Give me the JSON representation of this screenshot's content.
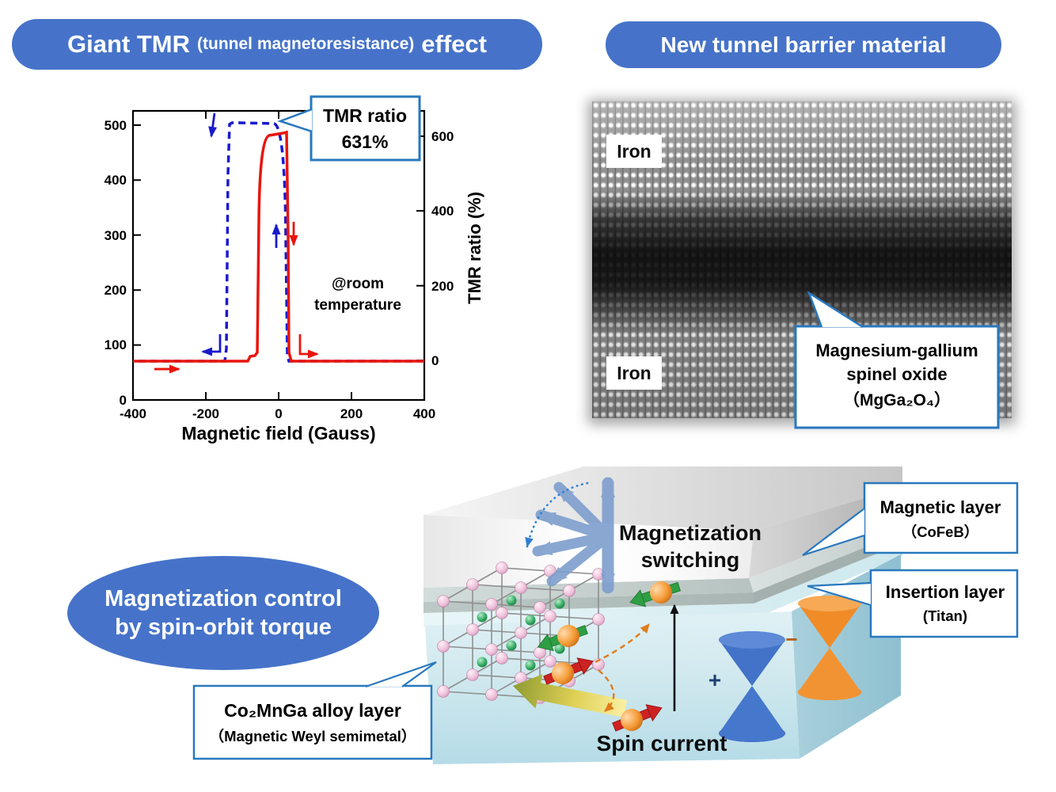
{
  "banner_tmr": {
    "main": "Giant TMR",
    "paren": "(tunnel magnetoresistance)",
    "suffix": "effect"
  },
  "banner_barrier": {
    "label": "New tunnel barrier material"
  },
  "bubble_soc": {
    "line1": "Magnetization control",
    "line2": "by spin-orbit torque"
  },
  "chart": {
    "xlabel": "Magnetic field (Gauss)",
    "right_axis_label": "TMR ratio (%)",
    "note_line1": "@room",
    "note_line2": "temperature",
    "callout_line1": "TMR ratio",
    "callout_line2": "631%",
    "left_ticks": [
      "500",
      "400",
      "300",
      "200",
      "100",
      "0"
    ],
    "right_ticks": [
      "600",
      "400",
      "200",
      "0"
    ],
    "x_ticks": [
      "-400",
      "-200",
      "0",
      "200",
      "400"
    ]
  },
  "chart_data": {
    "type": "line",
    "title": "",
    "xlabel": "Magnetic field (Gauss)",
    "ylabel_right": "TMR ratio (%)",
    "x_range": [
      -400,
      400
    ],
    "left_axis_ticks": [
      0,
      100,
      200,
      300,
      400,
      500
    ],
    "right_axis_ticks": [
      0,
      200,
      400,
      600
    ],
    "annotation": "TMR ratio 631%",
    "condition": "@room temperature",
    "peak_tmr_percent": 631,
    "legend_position": "none",
    "grid": false,
    "series": [
      {
        "name": "field sweep toward positive (solid red)",
        "color": "#e8150d",
        "style": "solid",
        "points": [
          [
            -400,
            0
          ],
          [
            -70,
            0
          ],
          [
            -55,
            10
          ],
          [
            -50,
            450
          ],
          [
            -40,
            580
          ],
          [
            -20,
            600
          ],
          [
            0,
            605
          ],
          [
            20,
            610
          ],
          [
            28,
            612
          ],
          [
            30,
            300
          ],
          [
            32,
            0
          ],
          [
            400,
            0
          ]
        ]
      },
      {
        "name": "field sweep toward negative (dashed blue)",
        "color": "#1a1acd",
        "style": "dashed",
        "points": [
          [
            400,
            0
          ],
          [
            32,
            0
          ],
          [
            28,
            500
          ],
          [
            25,
            615
          ],
          [
            0,
            628
          ],
          [
            -60,
            631
          ],
          [
            -135,
            631
          ],
          [
            -142,
            630
          ],
          [
            -146,
            300
          ],
          [
            -150,
            0
          ],
          [
            -400,
            0
          ]
        ]
      }
    ]
  },
  "stem": {
    "label_top": "Iron",
    "label_bottom": "Iron",
    "callout_line1": "Magnesium-gallium",
    "callout_line2": "spinel oxide",
    "callout_line3": "（MgGa₂O₄）"
  },
  "device": {
    "switching_line1": "Magnetization",
    "switching_line2": "switching",
    "spin_current": "Spin current",
    "weyl_plus": "+",
    "weyl_minus": "−",
    "magnetic_layer_line1": "Magnetic layer",
    "magnetic_layer_line2": "（CoFeB）",
    "insertion_layer_line1": "Insertion layer",
    "insertion_layer_line2": "(Titan)",
    "alloy_line1": "Co₂MnGa alloy layer",
    "alloy_line2": "（Magnetic Weyl semimetal）"
  }
}
